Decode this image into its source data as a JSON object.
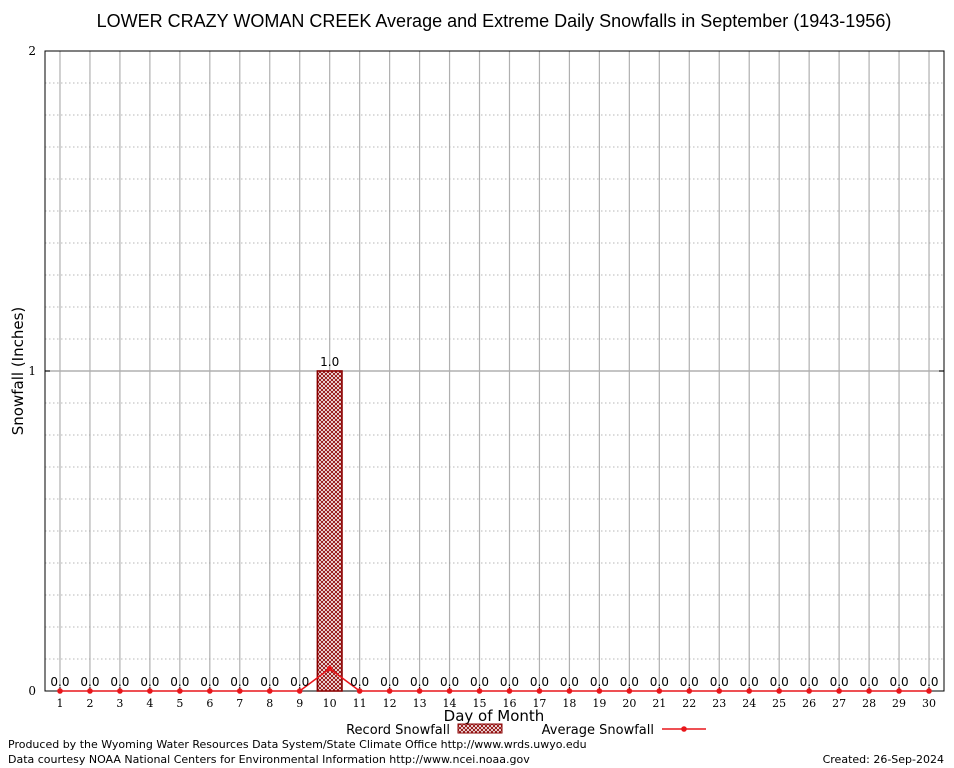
{
  "chart_data": {
    "type": "bar",
    "title": "LOWER CRAZY WOMAN CREEK Average and Extreme Daily Snowfalls in September (1943-1956)",
    "xlabel": "Day of Month",
    "ylabel": "Snowfall (Inches)",
    "ylim": [
      0,
      2
    ],
    "yticks": [
      "0",
      "1",
      "2"
    ],
    "categories": [
      "1",
      "2",
      "3",
      "4",
      "5",
      "6",
      "7",
      "8",
      "9",
      "10",
      "11",
      "12",
      "13",
      "14",
      "15",
      "16",
      "17",
      "18",
      "19",
      "20",
      "21",
      "22",
      "23",
      "24",
      "25",
      "26",
      "27",
      "28",
      "29",
      "30"
    ],
    "series": [
      {
        "name": "Record Snowfall",
        "type": "bar",
        "values": [
          0,
          0,
          0,
          0,
          0,
          0,
          0,
          0,
          0,
          1.0,
          0,
          0,
          0,
          0,
          0,
          0,
          0,
          0,
          0,
          0,
          0,
          0,
          0,
          0,
          0,
          0,
          0,
          0,
          0,
          0
        ],
        "labels": [
          "0.0",
          "0.0",
          "0.0",
          "0.0",
          "0.0",
          "0.0",
          "0.0",
          "0.0",
          "0.0",
          "1.0",
          "0.0",
          "0.0",
          "0.0",
          "0.0",
          "0.0",
          "0.0",
          "0.0",
          "0.0",
          "0.0",
          "0.0",
          "0.0",
          "0.0",
          "0.0",
          "0.0",
          "0.0",
          "0.0",
          "0.0",
          "0.0",
          "0.0",
          "0.0"
        ]
      },
      {
        "name": "Average Snowfall",
        "type": "line",
        "values": [
          0,
          0,
          0,
          0,
          0,
          0,
          0,
          0,
          0,
          0.07,
          0,
          0,
          0,
          0,
          0,
          0,
          0,
          0,
          0,
          0,
          0,
          0,
          0,
          0,
          0,
          0,
          0,
          0,
          0,
          0
        ]
      }
    ],
    "colors": {
      "bar": "#8b0000",
      "line": "#e8161b",
      "grid": "#b0b0b0"
    },
    "grid": true,
    "legend": "bottom"
  },
  "footer": {
    "left_line1": "Produced by the Wyoming Water Resources Data System/State Climate Office http://www.wrds.uwyo.edu",
    "left_line2": "Data courtesy NOAA National Centers for Environmental Information http://www.ncei.noaa.gov",
    "created": "Created:  26-Sep-2024"
  }
}
